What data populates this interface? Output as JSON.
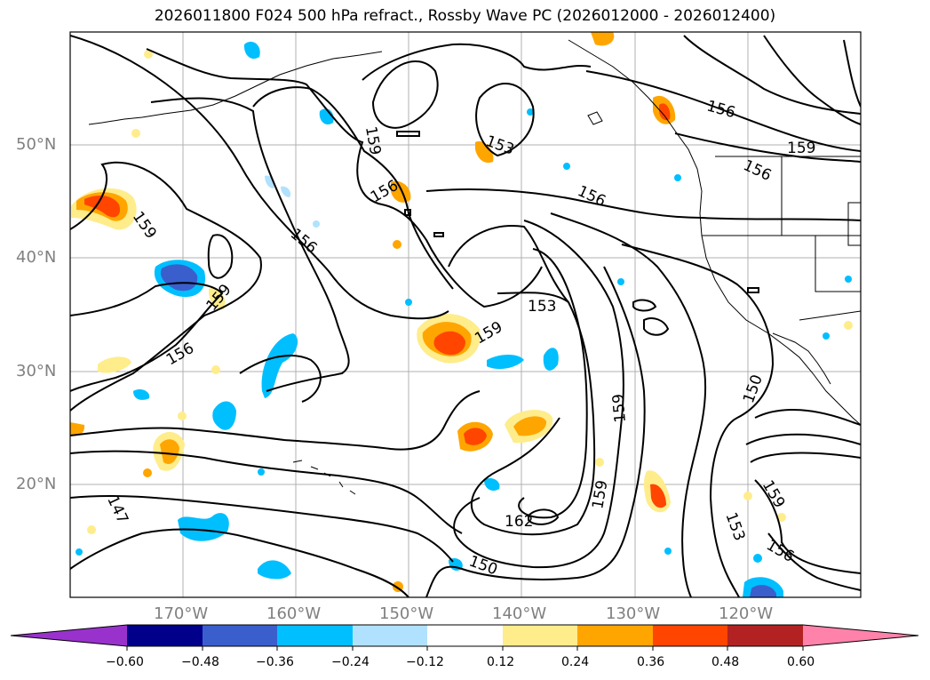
{
  "title": "2026011800 F024 500 hPa refract., Rossby Wave PC (2026012000 - 2026012400)",
  "lat_labels": [
    "50°N",
    "40°N",
    "30°N",
    "20°N"
  ],
  "lon_labels": [
    "170°W",
    "160°W",
    "150°W",
    "140°W",
    "130°W",
    "120°W"
  ],
  "contour_labels": [
    "147",
    "150",
    "150",
    "153",
    "153",
    "153",
    "156",
    "156",
    "156",
    "156",
    "156",
    "156",
    "156",
    "159",
    "159",
    "159",
    "159",
    "159",
    "159",
    "162",
    "159",
    "159"
  ],
  "colorbar": {
    "ticks": [
      "−0.60",
      "−0.48",
      "−0.36",
      "−0.24",
      "−0.12",
      "0.12",
      "0.24",
      "0.36",
      "0.48",
      "0.60"
    ],
    "colors": [
      "#9932cc",
      "#00008b",
      "#3a5fcd",
      "#00bfff",
      "#b0e2ff",
      "#ffffff",
      "#ffec8b",
      "#ffa500",
      "#ff4500",
      "#b22222",
      "#ff82ab"
    ]
  }
}
